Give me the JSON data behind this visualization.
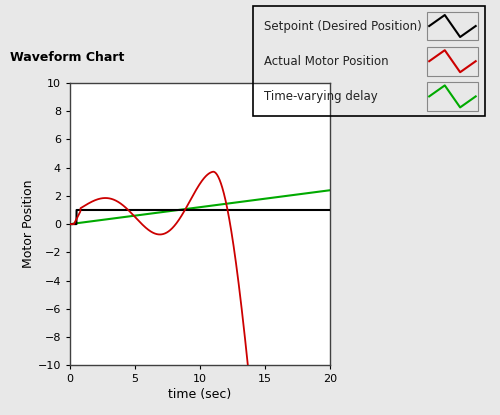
{
  "title": "Waveform Chart",
  "xlabel": "time (sec)",
  "ylabel": "Motor Position",
  "xlim": [
    0,
    20
  ],
  "ylim": [
    -10,
    10
  ],
  "xticks": [
    0,
    5,
    10,
    15,
    20
  ],
  "yticks": [
    -10,
    -8,
    -6,
    -4,
    -2,
    0,
    2,
    4,
    6,
    8,
    10
  ],
  "setpoint_color": "#000000",
  "actual_color": "#cc0000",
  "delay_color": "#00aa00",
  "legend_labels": [
    "Setpoint (Desired Position)",
    "Actual Motor Position",
    "Time-varying delay"
  ],
  "background_color": "#e8e8e8",
  "plot_bg_color": "#ffffff"
}
